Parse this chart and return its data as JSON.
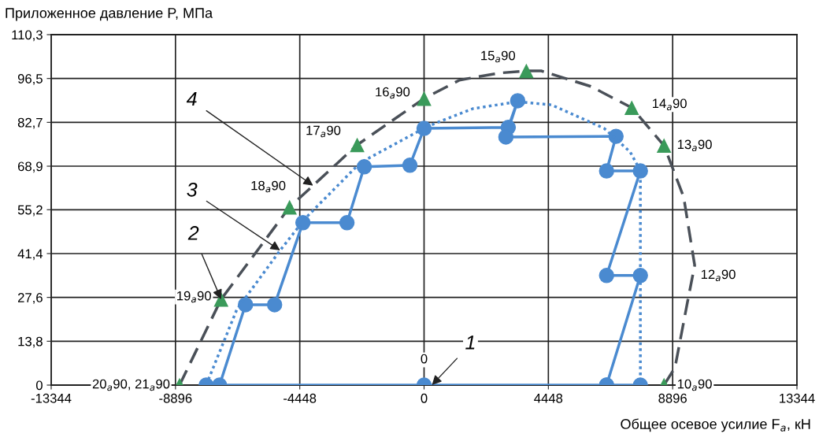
{
  "chart_data": {
    "type": "line",
    "xlabel": "Общее осевое усилие F$_{a}$, кН",
    "ylabel": "Приложенное давление P, МПа",
    "xlim": [
      -13344,
      13344
    ],
    "ylim": [
      0,
      110.3
    ],
    "xticks": [
      -13344,
      -8896,
      -4448,
      0,
      4448,
      8896,
      13344
    ],
    "yticks": [
      0,
      {
        "value": 13.8,
        "label": "13,8"
      },
      {
        "value": 27.6,
        "label": "27,6"
      },
      {
        "value": 41.4,
        "label": "41,4"
      },
      {
        "value": 55.2,
        "label": "55,2"
      },
      {
        "value": 68.9,
        "label": "68,9"
      },
      {
        "value": 82.7,
        "label": "82,7"
      },
      {
        "value": 96.5,
        "label": "96,5"
      },
      {
        "value": 110.3,
        "label": "110,3"
      }
    ],
    "grid": true,
    "series": [
      {
        "color": "#4a8ad0",
        "marker": "circle",
        "line_style": "solid",
        "x": [
          6531,
          0,
          -7798,
          -7319,
          -6390,
          -5349,
          -4335,
          -2759,
          -2140,
          -507,
          0,
          3012,
          3350,
          2928,
          6869,
          6531,
          7741,
          6531,
          7741,
          6531,
          7741
        ],
        "values": [
          0,
          0,
          0,
          0,
          25.3,
          25.3,
          51.1,
          51.1,
          68.7,
          69.2,
          80.8,
          81.1,
          89.5,
          78.1,
          78.3,
          67.4,
          67.4,
          34.5,
          34.5,
          0,
          0
        ]
      },
      {
        "color": "#4a8ad0",
        "marker": "none",
        "line_style": "dotted",
        "x": [
          -7798,
          -6700,
          -5151,
          -4250,
          -2280,
          141,
          1745,
          3350,
          4560,
          6446,
          7375,
          7741,
          7741
        ],
        "values": [
          0,
          23.8,
          42.4,
          52.5,
          70,
          81.5,
          87,
          89.2,
          88.2,
          80.8,
          73.4,
          67.4,
          0
        ]
      },
      {
        "color": "#4a5058",
        "marker": "none",
        "line_style": "dashed",
        "x": [
          -8750,
          -7263,
          -4814,
          -2393,
          0,
          1267,
          2674,
          3660,
          4194,
          5968,
          7432,
          8586,
          9290,
          9684,
          9430,
          8980,
          8586
        ],
        "values": [
          0,
          27,
          56,
          75.6,
          90.2,
          96,
          98.2,
          98.9,
          98.9,
          94,
          87.3,
          75.4,
          59.2,
          37.7,
          26.3,
          5.5,
          0
        ]
      },
      {
        "type": "scatter",
        "color": "#3a9a5a",
        "marker": "triangle",
        "x": [
          -8750,
          -7263,
          -4814,
          -2393,
          0,
          3660,
          7432,
          8586,
          8586
        ],
        "values": [
          0,
          27,
          56,
          75.6,
          90.2,
          98.9,
          87.3,
          75.4,
          0
        ]
      }
    ],
    "annotations": [
      {
        "text": "20$_{a}$90, 21$_{a}$90",
        "x": -8750,
        "y": 0
      },
      {
        "text": "19$_{a}$90",
        "x": -7263,
        "y": 27
      },
      {
        "text": "18$_{a}$90",
        "x": -4814,
        "y": 56
      },
      {
        "text": "17$_{a}$90",
        "x": -2393,
        "y": 75.6
      },
      {
        "text": "16$_{a}$90",
        "x": 0,
        "y": 90.2
      },
      {
        "text": "15$_{a}$90",
        "x": 3660,
        "y": 98.9
      },
      {
        "text": "14$_{a}$90",
        "x": 7432,
        "y": 87.3
      },
      {
        "text": "13$_{a}$90",
        "x": 8586,
        "y": 75.4
      },
      {
        "text": "12$_{a}$90",
        "x": 9684,
        "y": 34.5
      },
      {
        "text": "10$_{a}$90",
        "x": 8586,
        "y": 0
      },
      {
        "text": "0",
        "x": 0,
        "y": 0
      },
      {
        "text": "1",
        "x": 281,
        "y": 0
      },
      {
        "text": "2",
        "x": -7263,
        "y": 27
      },
      {
        "text": "3",
        "x": -5151,
        "y": 42.4
      },
      {
        "text": "4",
        "x": -3970,
        "y": 62.8
      }
    ]
  }
}
